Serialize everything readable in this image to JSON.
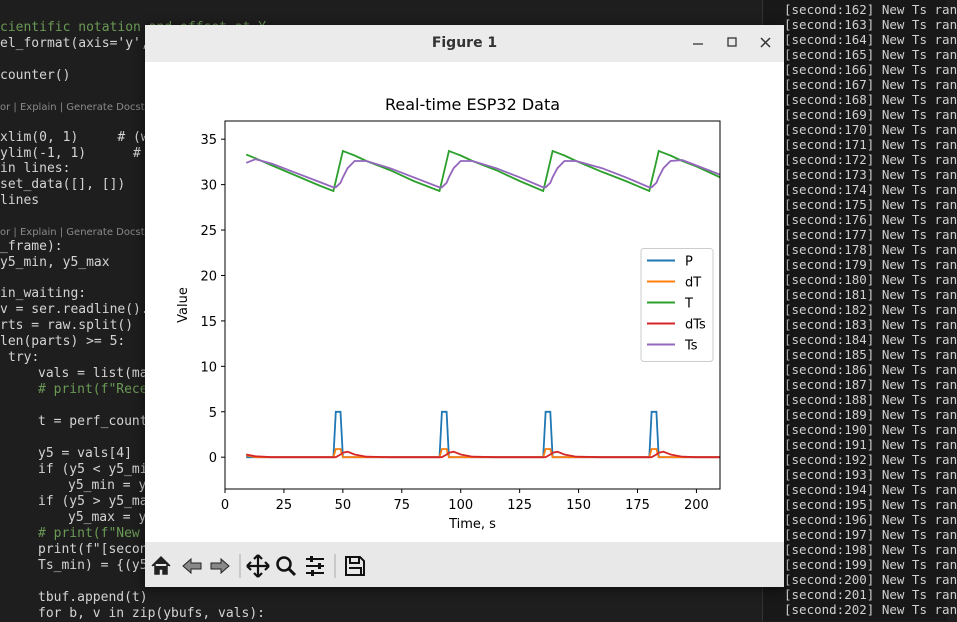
{
  "editor": {
    "lines": [
      "cientific notation and offset at Y",
      "el_format(axis='y', u",
      "counter()",
      "or | Explain | Generate Docstring",
      "xlim(0, 1)     # (w",
      "ylim(-1, 1)      # (v",
      "in lines:",
      "set_data([], [])",
      "lines",
      "or | Explain | Generate Docstring",
      "_frame):",
      "y5_min, y5_max",
      "in_waiting:",
      "v = ser.readline().de",
      "rts = raw.split()",
      "len(parts) >= 5:",
      "try:",
      "vals = list(map",
      "# print(f\"Recei",
      "t = perf_counte",
      "y5 = vals[4]",
      "if (y5 < y5_min",
      "y5_min = y5",
      "if (y5 > y5_max",
      "y5_max = y5",
      "# print(f\"New T",
      "print(f\"[second",
      "Ts_min) = {(y5",
      "tbuf.append(t)",
      "for b, v in zip(ybufs, vals):"
    ]
  },
  "terminal": {
    "lines": [
      "[second:162] New Ts ran",
      "[second:163] New Ts ran",
      "[second:164] New Ts ran",
      "[second:165] New Ts ran",
      "[second:166] New Ts ran",
      "[second:167] New Ts ran",
      "[second:168] New Ts ran",
      "[second:169] New Ts ran",
      "[second:170] New Ts ran",
      "[second:171] New Ts ran",
      "[second:172] New Ts ran",
      "[second:173] New Ts ran",
      "[second:174] New Ts ran",
      "[second:175] New Ts ran",
      "[second:176] New Ts ran",
      "[second:177] New Ts ran",
      "[second:178] New Ts ran",
      "[second:179] New Ts ran",
      "[second:180] New Ts ran",
      "[second:181] New Ts ran",
      "[second:182] New Ts ran",
      "[second:183] New Ts ran",
      "[second:184] New Ts ran",
      "[second:185] New Ts ran",
      "[second:186] New Ts ran",
      "[second:187] New Ts ran",
      "[second:188] New Ts ran",
      "[second:189] New Ts ran",
      "[second:190] New Ts ran",
      "[second:191] New Ts ran",
      "[second:192] New Ts ran",
      "[second:193] New Ts ran",
      "[second:194] New Ts ran",
      "[second:195] New Ts ran",
      "[second:196] New Ts ran",
      "[second:197] New Ts ran",
      "[second:198] New Ts ran",
      "[second:199] New Ts ran",
      "[second:200] New Ts ran",
      "[second:201] New Ts ran",
      "[second:202] New Ts ran"
    ]
  },
  "window": {
    "title": "Figure 1"
  },
  "chart_data": {
    "type": "line",
    "title": "Real-time ESP32 Data",
    "x_label": "Time, s",
    "y_label": "Value",
    "x": [
      9,
      13,
      20,
      30,
      40,
      46,
      47,
      49,
      50,
      52,
      55,
      60,
      70,
      80,
      91,
      92,
      94,
      95,
      97,
      100,
      105,
      115,
      125,
      135,
      136,
      138,
      139,
      141,
      144,
      149,
      160,
      170,
      180,
      181,
      183,
      184,
      186,
      189,
      194,
      200,
      210
    ],
    "series": [
      {
        "name": "P",
        "color": "#1f77b4",
        "values": [
          0,
          0,
          0,
          0,
          0,
          0,
          5,
          5,
          0,
          0,
          0,
          0,
          0,
          0,
          0,
          5,
          5,
          0,
          0,
          0,
          0,
          0,
          0,
          0,
          5,
          5,
          0,
          0,
          0,
          0,
          0,
          0,
          0,
          5,
          5,
          0,
          0,
          0,
          0,
          0,
          0
        ]
      },
      {
        "name": "dT",
        "color": "#ff7f0e",
        "values": [
          0.2,
          0,
          0,
          0,
          0,
          0,
          0.9,
          0.9,
          0,
          0,
          0,
          0,
          0,
          0,
          0,
          0.9,
          0.9,
          0,
          0,
          0,
          0,
          0,
          0,
          0,
          0.9,
          0.9,
          0,
          0,
          0,
          0,
          0,
          0,
          0,
          0.9,
          0.9,
          0,
          0,
          0,
          0,
          0,
          0
        ]
      },
      {
        "name": "T",
        "color": "#2ca02c",
        "values": [
          33.3,
          32.9,
          32.1,
          31.0,
          29.9,
          29.3,
          30.4,
          32.6,
          33.7,
          33.5,
          33.2,
          32.6,
          31.6,
          30.4,
          29.3,
          30.4,
          32.6,
          33.7,
          33.5,
          33.2,
          32.6,
          31.6,
          30.4,
          29.3,
          30.4,
          32.6,
          33.7,
          33.5,
          33.2,
          32.6,
          31.4,
          30.4,
          29.3,
          30.4,
          32.6,
          33.7,
          33.5,
          33.2,
          32.6,
          32.0,
          30.8
        ]
      },
      {
        "name": "dTs",
        "color": "#d62728",
        "values": [
          0.3,
          0.1,
          0,
          0,
          0,
          0,
          0,
          0.3,
          0.5,
          0.6,
          0.3,
          0.05,
          0,
          0,
          0,
          0,
          0.3,
          0.5,
          0.6,
          0.3,
          0.05,
          0,
          0,
          0,
          0,
          0.3,
          0.5,
          0.6,
          0.3,
          0.05,
          0,
          0,
          0,
          0,
          0.3,
          0.5,
          0.6,
          0.3,
          0.05,
          0,
          0
        ]
      },
      {
        "name": "Ts",
        "color": "#9467bd",
        "values": [
          32.4,
          32.8,
          32.3,
          31.3,
          30.3,
          29.7,
          29.7,
          30.2,
          30.8,
          31.8,
          32.6,
          32.6,
          31.8,
          30.8,
          29.7,
          29.7,
          30.2,
          30.8,
          31.8,
          32.6,
          32.6,
          31.8,
          30.8,
          29.7,
          29.7,
          30.2,
          30.8,
          31.8,
          32.6,
          32.6,
          31.8,
          30.8,
          29.7,
          29.7,
          30.2,
          30.8,
          31.8,
          32.6,
          32.7,
          32.1,
          31.1
        ]
      }
    ],
    "xlim": [
      0,
      210
    ],
    "xticks": [
      0,
      25,
      50,
      75,
      100,
      125,
      150,
      175,
      200
    ],
    "ylim": [
      -3.5,
      37
    ],
    "yticks": [
      0,
      5,
      10,
      15,
      20,
      25,
      30,
      35
    ],
    "legend": "center right"
  }
}
